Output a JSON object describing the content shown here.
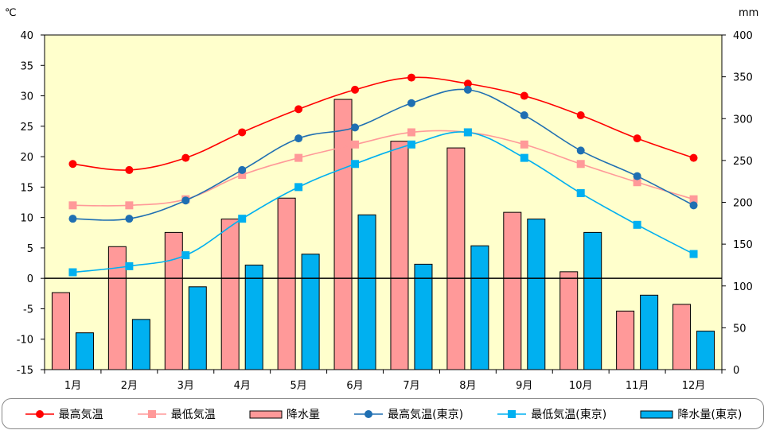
{
  "chart_data": {
    "type": "bar",
    "categories": [
      "1月",
      "2月",
      "3月",
      "4月",
      "5月",
      "6月",
      "7月",
      "8月",
      "9月",
      "10月",
      "11月",
      "12月"
    ],
    "left_axis": {
      "unit": "℃",
      "min": -15,
      "max": 40,
      "ticks": [
        "40",
        "35",
        "30",
        "25",
        "20",
        "15",
        "10",
        "5",
        "0",
        "-5",
        "-10",
        "-15"
      ]
    },
    "right_axis": {
      "unit": "mm",
      "min": 0,
      "max": 400,
      "ticks": [
        "400",
        "350",
        "300",
        "250",
        "200",
        "150",
        "100",
        "50",
        "0"
      ]
    },
    "series": [
      {
        "name": "最高気温",
        "kind": "line",
        "axis": "left",
        "marker": "circle",
        "color": "#ff0000",
        "values": [
          18.8,
          17.8,
          19.8,
          24.0,
          27.8,
          31.0,
          33.0,
          32.0,
          30.0,
          26.8,
          23.0,
          19.8
        ]
      },
      {
        "name": "最低気温",
        "kind": "line",
        "axis": "left",
        "marker": "square",
        "color": "#ff9999",
        "values": [
          12.0,
          12.0,
          13.0,
          17.0,
          19.8,
          22.0,
          24.0,
          24.0,
          22.0,
          18.8,
          15.8,
          13.0
        ]
      },
      {
        "name": "降水量",
        "kind": "bar",
        "axis": "right",
        "color": "#ff9999",
        "values": [
          92,
          147,
          164,
          180,
          205,
          323,
          273,
          265,
          188,
          117,
          70,
          78
        ]
      },
      {
        "name": "最高気温(東京)",
        "kind": "line",
        "axis": "left",
        "marker": "circle",
        "color": "#1f6fb2",
        "values": [
          9.8,
          9.8,
          12.8,
          17.8,
          23.0,
          24.8,
          28.8,
          31.0,
          26.8,
          21.0,
          16.8,
          12.0
        ]
      },
      {
        "name": "最低気温(東京)",
        "kind": "line",
        "axis": "left",
        "marker": "square",
        "color": "#00b0f0",
        "values": [
          1.0,
          2.0,
          3.8,
          9.8,
          15.0,
          18.8,
          22.0,
          24.0,
          19.8,
          14.0,
          8.8,
          4.0
        ]
      },
      {
        "name": "降水量(東京)",
        "kind": "bar",
        "axis": "right",
        "color": "#00b0f0",
        "values": [
          44,
          60,
          99,
          125,
          138,
          185,
          126,
          148,
          180,
          164,
          89,
          46
        ]
      }
    ],
    "plot_background": "#ffffcc",
    "legend_position": "bottom"
  }
}
